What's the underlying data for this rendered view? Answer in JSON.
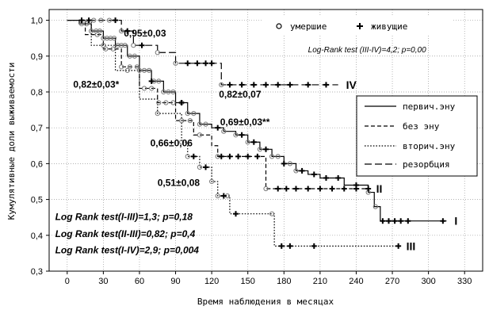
{
  "chart_data": {
    "type": "line",
    "xlabel": "Время наблюдения в месяцах",
    "ylabel": "Кумулятивные доли выживаемости",
    "xlim": [
      -15,
      345
    ],
    "ylim": [
      0.3,
      1.03
    ],
    "xticks": [
      0,
      30,
      60,
      90,
      120,
      150,
      180,
      210,
      240,
      270,
      300,
      330
    ],
    "yticks": [
      0.3,
      0.4,
      0.5,
      0.6,
      0.7,
      0.8,
      0.9,
      1.0
    ],
    "grid": true,
    "marker_legend": [
      {
        "symbol": "o",
        "label": "умершие"
      },
      {
        "symbol": "+",
        "label": "живущие"
      }
    ],
    "line_legend_position": "right",
    "series": [
      {
        "name": "первич.эну",
        "roman": "I",
        "dash": "none",
        "steps": [
          [
            0,
            1.0
          ],
          [
            10,
            0.99
          ],
          [
            20,
            0.97
          ],
          [
            30,
            0.95
          ],
          [
            40,
            0.93
          ],
          [
            50,
            0.9
          ],
          [
            60,
            0.86
          ],
          [
            70,
            0.83
          ],
          [
            80,
            0.8
          ],
          [
            90,
            0.77
          ],
          [
            100,
            0.74
          ],
          [
            110,
            0.71
          ],
          [
            120,
            0.7
          ],
          [
            130,
            0.69
          ],
          [
            140,
            0.68
          ],
          [
            150,
            0.66
          ],
          [
            160,
            0.64
          ],
          [
            170,
            0.62
          ],
          [
            180,
            0.6
          ],
          [
            190,
            0.58
          ],
          [
            200,
            0.57
          ],
          [
            210,
            0.56
          ],
          [
            230,
            0.54
          ],
          [
            250,
            0.52
          ],
          [
            255,
            0.48
          ],
          [
            260,
            0.44
          ],
          [
            315,
            0.44
          ]
        ],
        "died_x": [
          12,
          16,
          20,
          24,
          27,
          30,
          33,
          36,
          39,
          42,
          45,
          48,
          52,
          56,
          60,
          64,
          68,
          72,
          76,
          80,
          84,
          88,
          95,
          100,
          105,
          110,
          115,
          130,
          140,
          150,
          160,
          170,
          175,
          185,
          190,
          250,
          256
        ],
        "censored_x": [
          70,
          95,
          125,
          145,
          155,
          165,
          180,
          195,
          205,
          215,
          225,
          240,
          262,
          267,
          272,
          277,
          283,
          312
        ]
      },
      {
        "name": "без эну",
        "roman": "II",
        "dash": "5 3",
        "steps": [
          [
            0,
            1.0
          ],
          [
            15,
            0.96
          ],
          [
            30,
            0.92
          ],
          [
            45,
            0.87
          ],
          [
            60,
            0.81
          ],
          [
            75,
            0.77
          ],
          [
            90,
            0.72
          ],
          [
            105,
            0.68
          ],
          [
            120,
            0.65
          ],
          [
            125,
            0.62
          ],
          [
            160,
            0.62
          ],
          [
            165,
            0.53
          ],
          [
            250,
            0.53
          ]
        ],
        "died_x": [
          25,
          32,
          38,
          45,
          52,
          58,
          64,
          70,
          76,
          82,
          88,
          95,
          102,
          110,
          125,
          165
        ],
        "censored_x": [
          128,
          135,
          142,
          150,
          158,
          175,
          182,
          190,
          200,
          210,
          220,
          230,
          240,
          250
        ]
      },
      {
        "name": "вторич.эну",
        "roman": "III",
        "dash": "1.6 2",
        "steps": [
          [
            0,
            1.0
          ],
          [
            20,
            0.93
          ],
          [
            40,
            0.86
          ],
          [
            60,
            0.78
          ],
          [
            75,
            0.74
          ],
          [
            95,
            0.66
          ],
          [
            100,
            0.62
          ],
          [
            110,
            0.59
          ],
          [
            120,
            0.55
          ],
          [
            125,
            0.51
          ],
          [
            135,
            0.46
          ],
          [
            170,
            0.46
          ],
          [
            172,
            0.37
          ],
          [
            275,
            0.37
          ]
        ],
        "died_x": [
          30,
          50,
          75,
          95,
          100,
          110,
          120,
          125,
          133,
          170
        ],
        "censored_x": [
          105,
          115,
          130,
          140,
          178,
          185,
          205,
          275
        ]
      },
      {
        "name": "резорбция",
        "roman": "IV",
        "dash": "9 4",
        "steps": [
          [
            0,
            1.0
          ],
          [
            20,
            1.0
          ],
          [
            45,
            0.97
          ],
          [
            55,
            0.93
          ],
          [
            75,
            0.91
          ],
          [
            90,
            0.88
          ],
          [
            125,
            0.88
          ],
          [
            128,
            0.82
          ],
          [
            225,
            0.82
          ]
        ],
        "died_x": [
          22,
          28,
          35,
          45,
          55,
          75,
          90,
          128
        ],
        "censored_x": [
          12,
          18,
          40,
          50,
          62,
          100,
          108,
          115,
          120,
          135,
          145,
          155,
          165,
          175,
          185,
          200,
          215
        ]
      }
    ],
    "annotations": [
      {
        "text": "0,95±0,03",
        "x": 47,
        "y": 0.955,
        "style": "bold"
      },
      {
        "text": "0,82±0,03*",
        "x": 5,
        "y": 0.812,
        "style": "bold"
      },
      {
        "text": "0,82±0,07",
        "x": 126,
        "y": 0.785,
        "style": "bold"
      },
      {
        "text": "0,69±0,03**",
        "x": 127,
        "y": 0.707,
        "style": "bold"
      },
      {
        "text": "0,66±0,06",
        "x": 69,
        "y": 0.648,
        "style": "bold"
      },
      {
        "text": "0,51±0,08",
        "x": 75,
        "y": 0.538,
        "style": "bold"
      },
      {
        "text": "Log-Rank test (III-IV)=4,2; p=0,00",
        "x": 200,
        "y": 0.91,
        "style": "italic-small"
      },
      {
        "text": "Log Rank test(I-III)=1,3; p=0,18",
        "x": -10,
        "y": 0.443,
        "style": "italic"
      },
      {
        "text": "Log Rank test(II-III)=0,82; p=0,4",
        "x": -10,
        "y": 0.395,
        "style": "italic"
      },
      {
        "text": "Log Rank test(I-IV)=2,9; p=0,004",
        "x": -10,
        "y": 0.35,
        "style": "italic"
      }
    ]
  },
  "colors": {
    "line": "#000000",
    "grid": "#999999",
    "died_marker": "#777777",
    "background": "#ffffff"
  }
}
